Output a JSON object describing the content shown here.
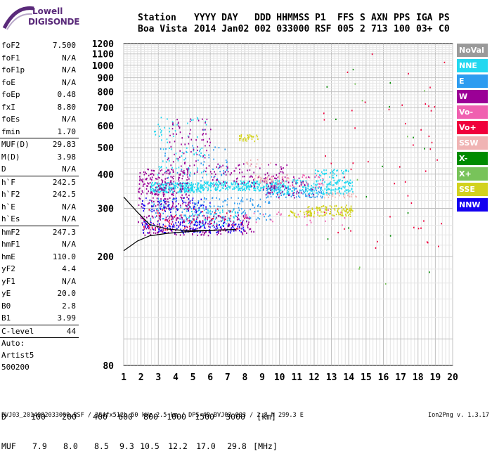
{
  "logo": {
    "line1": "Lowell",
    "line2": "DIGISONDE"
  },
  "header": {
    "labels": [
      "Station",
      "YYYY DAY",
      "DDD HHMMSS",
      "P1",
      "FFS",
      "S",
      "AXN",
      "PPS",
      "IGA",
      "PS"
    ],
    "values": [
      "Boa Vista",
      "2014 Jan02",
      "002 033000",
      "RSF",
      "005",
      "2",
      "713",
      "100",
      "03+",
      "C0"
    ]
  },
  "params": [
    {
      "name": "foF2",
      "value": "7.500"
    },
    {
      "name": "foF1",
      "value": "N/A"
    },
    {
      "name": "foF1p",
      "value": "N/A"
    },
    {
      "name": "foE",
      "value": "N/A"
    },
    {
      "name": "foEp",
      "value": "0.48"
    },
    {
      "name": "fxI",
      "value": "8.80"
    },
    {
      "name": "foEs",
      "value": "N/A"
    },
    {
      "name": "fmin",
      "value": "1.70"
    },
    {
      "sep": true
    },
    {
      "name": "MUF(D)",
      "value": "29.83"
    },
    {
      "name": "M(D)",
      "value": "3.98"
    },
    {
      "name": "D",
      "value": "N/A"
    },
    {
      "sep": true
    },
    {
      "name": "h`F",
      "value": "242.5"
    },
    {
      "name": "h`F2",
      "value": "242.5"
    },
    {
      "name": "h`E",
      "value": "N/A"
    },
    {
      "name": "h`Es",
      "value": "N/A"
    },
    {
      "sep": true
    },
    {
      "name": "hmF2",
      "value": "247.3"
    },
    {
      "name": "hmF1",
      "value": "N/A"
    },
    {
      "name": "hmE",
      "value": "110.0"
    },
    {
      "name": "yF2",
      "value": "4.4"
    },
    {
      "name": "yF1",
      "value": "N/A"
    },
    {
      "name": "yE",
      "value": "20.0"
    },
    {
      "name": "B0",
      "value": "2.8"
    },
    {
      "name": "B1",
      "value": "3.99"
    },
    {
      "sep": true
    },
    {
      "name": "C-level",
      "value": "44"
    },
    {
      "sep": true
    }
  ],
  "auto": {
    "line1": "Auto:",
    "line2": "Artist5",
    "line3": "500200"
  },
  "legend": [
    {
      "label": "NoVal",
      "color": "#9a9a9a"
    },
    {
      "label": "NNE",
      "color": "#22d8f0"
    },
    {
      "label": "E",
      "color": "#2d9cf0"
    },
    {
      "label": "W",
      "color": "#9b0096"
    },
    {
      "label": "Vo-",
      "color": "#f060b0"
    },
    {
      "label": "Vo+",
      "color": "#f0003c"
    },
    {
      "label": "SSW",
      "color": "#f0b4b4"
    },
    {
      "label": "X-",
      "color": "#008c00"
    },
    {
      "label": "X+",
      "color": "#78c35a"
    },
    {
      "label": "SSE",
      "color": "#d2d21e"
    },
    {
      "label": "NNW",
      "color": "#1400f0"
    }
  ],
  "bottom_table": {
    "d_label": "D",
    "d_values": [
      "100",
      "200",
      "400",
      "600",
      "800",
      "1000",
      "1500",
      "3000",
      "[km]"
    ],
    "muf_label": "MUF",
    "muf_values": [
      "7.9",
      "8.0",
      "8.5",
      "9.3",
      "10.5",
      "12.2",
      "17.0",
      "29.8",
      "[MHz]"
    ]
  },
  "footer": "BVJ03_2014002033000.RSF / 384fx512h 50 kHz 2.5 km / DPS-4D BVJ03 003 / 2.8 N 299.3 E",
  "version": "Ion2Png v. 1.3.17",
  "chart_data": {
    "type": "scatter",
    "title": "",
    "xlabel": "",
    "ylabel": "",
    "xlim": [
      1,
      20
    ],
    "ylim": [
      80,
      1200
    ],
    "x_ticks": [
      "1",
      "2",
      "3",
      "4",
      "5",
      "6",
      "7",
      "8",
      "9",
      "10",
      "11",
      "12",
      "13",
      "14",
      "15",
      "16",
      "17",
      "18",
      "19",
      "20"
    ],
    "y_ticks": [
      "80",
      "200",
      "300",
      "400",
      "500",
      "600",
      "700",
      "800",
      "900",
      "1000",
      "1100",
      "1200"
    ],
    "y_scale": "log",
    "grid": true,
    "legend_position": "right",
    "series": [
      {
        "name": "NNE",
        "color": "#22d8f0",
        "clusters": [
          {
            "x": [
              2.5,
              5.5
            ],
            "y": [
              345,
              375
            ],
            "n": 260
          },
          {
            "x": [
              5.5,
              10.0
            ],
            "y": [
              350,
              380
            ],
            "n": 260
          },
          {
            "x": [
              9.6,
              14.2
            ],
            "y": [
              340,
              385
            ],
            "n": 220
          },
          {
            "x": [
              2.6,
              5.8
            ],
            "y": [
              400,
              650
            ],
            "n": 80
          },
          {
            "x": [
              4.5,
              7.5
            ],
            "y": [
              260,
              300
            ],
            "n": 80
          },
          {
            "x": [
              12.0,
              14.0
            ],
            "y": [
              390,
              420
            ],
            "n": 40
          }
        ]
      },
      {
        "name": "E",
        "color": "#2d9cf0",
        "clusters": [
          {
            "x": [
              2.5,
              9.5
            ],
            "y": [
              270,
              330
            ],
            "n": 180
          },
          {
            "x": [
              9.0,
              12.5
            ],
            "y": [
              330,
              360
            ],
            "n": 90
          },
          {
            "x": [
              3.0,
              7.0
            ],
            "y": [
              380,
              520
            ],
            "n": 50
          }
        ]
      },
      {
        "name": "W",
        "color": "#9b0096",
        "clusters": [
          {
            "x": [
              1.8,
              4.8
            ],
            "y": [
              300,
              420
            ],
            "n": 230
          },
          {
            "x": [
              1.8,
              8.5
            ],
            "y": [
              240,
              285
            ],
            "n": 220
          },
          {
            "x": [
              3.5,
              6.0
            ],
            "y": [
              400,
              640
            ],
            "n": 80
          },
          {
            "x": [
              6.0,
              10.5
            ],
            "y": [
              360,
              440
            ],
            "n": 90
          },
          {
            "x": [
              9.0,
              12.0
            ],
            "y": [
              330,
              400
            ],
            "n": 60
          }
        ]
      },
      {
        "name": "Vo-",
        "color": "#f060b0",
        "clusters": [
          {
            "x": [
              9.5,
              12.5
            ],
            "y": [
              360,
              400
            ],
            "n": 40
          },
          {
            "x": [
              8.0,
              14.0
            ],
            "y": [
              260,
              300
            ],
            "n": 30
          }
        ]
      },
      {
        "name": "Vo+",
        "color": "#f0003c",
        "clusters": [
          {
            "x": [
              2.0,
              8.0
            ],
            "y": [
              250,
              300
            ],
            "n": 60
          },
          {
            "x": [
              12.5,
              19.5
            ],
            "y": [
              200,
              1150
            ],
            "n": 50
          }
        ]
      },
      {
        "name": "SSW",
        "color": "#f0b4b4",
        "clusters": [
          {
            "x": [
              8.5,
              10.5
            ],
            "y": [
              375,
              400
            ],
            "n": 40
          },
          {
            "x": [
              12.5,
              14.5
            ],
            "y": [
              330,
              345
            ],
            "n": 30
          },
          {
            "x": [
              8.0,
              9.5
            ],
            "y": [
              420,
              460
            ],
            "n": 12
          }
        ]
      },
      {
        "name": "X-",
        "color": "#008c00",
        "clusters": [
          {
            "x": [
              12.5,
              19.5
            ],
            "y": [
              150,
              1000
            ],
            "n": 14
          }
        ]
      },
      {
        "name": "X+",
        "color": "#78c35a",
        "clusters": [
          {
            "x": [
              12.5,
              19.0
            ],
            "y": [
              150,
              900
            ],
            "n": 8
          }
        ]
      },
      {
        "name": "SSE",
        "color": "#d2d21e",
        "clusters": [
          {
            "x": [
              11.5,
              14.2
            ],
            "y": [
              282,
              310
            ],
            "n": 110
          },
          {
            "x": [
              7.6,
              8.8
            ],
            "y": [
              530,
              560
            ],
            "n": 35
          },
          {
            "x": [
              10.5,
              12.0
            ],
            "y": [
              280,
              295
            ],
            "n": 25
          }
        ]
      },
      {
        "name": "NNW",
        "color": "#1400f0",
        "clusters": [
          {
            "x": [
              2.0,
              8.0
            ],
            "y": [
              245,
              270
            ],
            "n": 130
          },
          {
            "x": [
              2.0,
              6.0
            ],
            "y": [
              290,
              330
            ],
            "n": 60
          }
        ]
      }
    ],
    "trace_curves": [
      {
        "name": "lower",
        "x": [
          1.0,
          1.8,
          2.5,
          3.5,
          4.5,
          5.5,
          6.5,
          7.5
        ],
        "y": [
          210,
          228,
          238,
          243,
          246,
          248,
          250,
          251
        ]
      },
      {
        "name": "upper",
        "x": [
          1.0,
          1.8,
          2.5,
          3.5,
          4.5,
          5.5,
          6.5,
          7.5
        ],
        "y": [
          330,
          290,
          262,
          252,
          249,
          249,
          250,
          251
        ]
      }
    ]
  }
}
